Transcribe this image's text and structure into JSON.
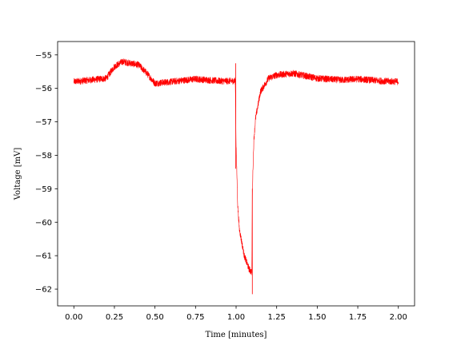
{
  "chart_data": {
    "type": "line",
    "xlabel": "Time [minutes]",
    "ylabel": "Voltage [mV]",
    "xlim": [
      -0.1,
      2.1
    ],
    "ylim": [
      -62.5,
      -54.6
    ],
    "xticks": [
      0.0,
      0.25,
      0.5,
      0.75,
      1.0,
      1.25,
      1.5,
      1.75,
      2.0
    ],
    "xtick_labels": [
      "0.00",
      "0.25",
      "0.50",
      "0.75",
      "1.00",
      "1.25",
      "1.50",
      "1.75",
      "2.00"
    ],
    "yticks": [
      -55,
      -56,
      -57,
      -58,
      -59,
      -60,
      -61,
      -62
    ],
    "ytick_labels": [
      "−55",
      "−56",
      "−57",
      "−58",
      "−59",
      "−60",
      "−61",
      "−62"
    ],
    "grid": false,
    "series": [
      {
        "color": "#ff0000",
        "noise_amplitude": 0.1,
        "x": [
          0.0,
          0.1,
          0.2,
          0.25,
          0.3,
          0.35,
          0.4,
          0.45,
          0.5,
          0.6,
          0.75,
          0.9,
          0.995,
          1.0,
          1.005,
          1.01,
          1.02,
          1.05,
          1.08,
          1.097,
          1.1,
          1.105,
          1.11,
          1.12,
          1.15,
          1.2,
          1.25,
          1.35,
          1.5,
          1.65,
          1.75,
          1.9,
          2.0
        ],
        "y": [
          -55.8,
          -55.75,
          -55.7,
          -55.35,
          -55.2,
          -55.25,
          -55.3,
          -55.55,
          -55.85,
          -55.8,
          -55.72,
          -55.78,
          -55.78,
          -57.7,
          -58.6,
          -59.5,
          -60.2,
          -61.0,
          -61.4,
          -61.5,
          -59.2,
          -58.2,
          -57.5,
          -56.9,
          -56.1,
          -55.7,
          -55.6,
          -55.55,
          -55.7,
          -55.75,
          -55.72,
          -55.78,
          -55.8
        ]
      }
    ],
    "spikes": [
      {
        "x": 0.998,
        "y_min": -58.4,
        "y_max": -55.25
      },
      {
        "x": 1.1,
        "y_min": -62.15,
        "y_max": -59.0
      }
    ]
  }
}
